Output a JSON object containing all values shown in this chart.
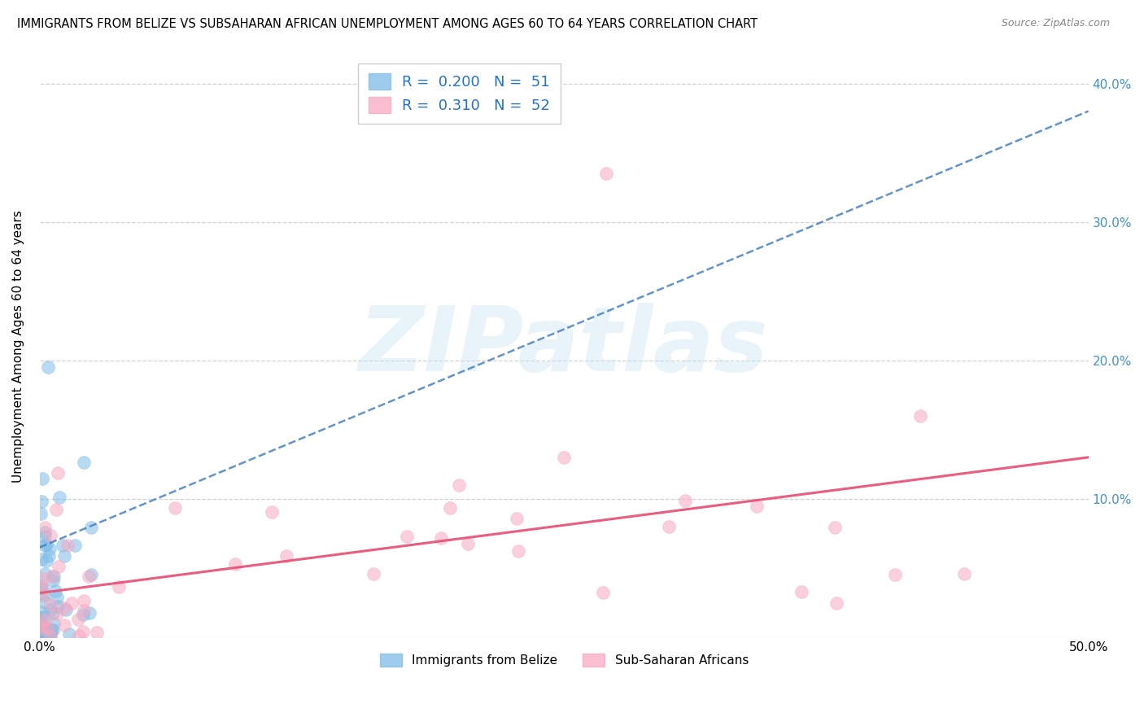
{
  "title": "IMMIGRANTS FROM BELIZE VS SUBSAHARAN AFRICAN UNEMPLOYMENT AMONG AGES 60 TO 64 YEARS CORRELATION CHART",
  "source": "Source: ZipAtlas.com",
  "ylabel": "Unemployment Among Ages 60 to 64 years",
  "xlim": [
    0.0,
    0.5
  ],
  "ylim": [
    0.0,
    0.42
  ],
  "xtick_pos": [
    0.0,
    0.1,
    0.2,
    0.3,
    0.4,
    0.5
  ],
  "xtick_labels": [
    "0.0%",
    "",
    "",
    "",
    "",
    "50.0%"
  ],
  "ytick_pos": [
    0.0,
    0.1,
    0.2,
    0.3,
    0.4
  ],
  "ytick_labels": [
    "",
    "10.0%",
    "20.0%",
    "30.0%",
    "40.0%"
  ],
  "grid_color": "#cccccc",
  "background_color": "#ffffff",
  "blue_color": "#7dbce8",
  "blue_line_color": "#3a7abf",
  "pink_color": "#f7a8c0",
  "pink_line_color": "#e8547a",
  "R_blue": 0.2,
  "N_blue": 51,
  "R_pink": 0.31,
  "N_pink": 52,
  "legend_labels": [
    "Immigrants from Belize",
    "Sub-Saharan Africans"
  ],
  "watermark": "ZIPatlas",
  "blue_trend_x": [
    0.0,
    0.5
  ],
  "blue_trend_y_start": 0.065,
  "blue_trend_y_end": 0.38,
  "pink_trend_x": [
    0.0,
    0.5
  ],
  "pink_trend_y_start": 0.032,
  "pink_trend_y_end": 0.13
}
